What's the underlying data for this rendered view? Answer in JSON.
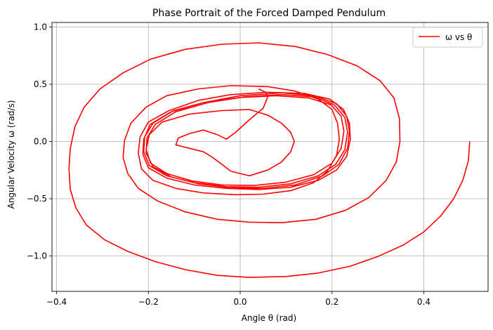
{
  "chart_data": {
    "type": "line",
    "title": "Phase Portrait of the Forced Damped Pendulum",
    "xlabel": "Angle θ (rad)",
    "ylabel": "Angular Velocity ω (rad/s)",
    "xlim": [
      -0.41,
      0.54
    ],
    "ylim": [
      -1.31,
      1.04
    ],
    "xticks": [
      -0.4,
      -0.2,
      0.0,
      0.2,
      0.4
    ],
    "xtick_labels": [
      "−0.4",
      "−0.2",
      "0.0",
      "0.2",
      "0.4"
    ],
    "yticks": [
      -1.0,
      -0.5,
      0.0,
      0.5,
      1.0
    ],
    "ytick_labels": [
      "−1.0",
      "−0.5",
      "0.0",
      "0.5",
      "1.0"
    ],
    "grid": true,
    "legend_position": "top-right",
    "series": [
      {
        "name": "ω vs θ",
        "color": "#ff0000",
        "points": [
          [
            0.5,
            0.0
          ],
          [
            0.497,
            -0.17
          ],
          [
            0.485,
            -0.34
          ],
          [
            0.465,
            -0.5
          ],
          [
            0.437,
            -0.65
          ],
          [
            0.4,
            -0.79
          ],
          [
            0.355,
            -0.905
          ],
          [
            0.3,
            -1.005
          ],
          [
            0.24,
            -1.09
          ],
          [
            0.17,
            -1.15
          ],
          [
            0.1,
            -1.18
          ],
          [
            0.02,
            -1.188
          ],
          [
            -0.05,
            -1.17
          ],
          [
            -0.12,
            -1.12
          ],
          [
            -0.185,
            -1.05
          ],
          [
            -0.245,
            -0.96
          ],
          [
            -0.295,
            -0.86
          ],
          [
            -0.335,
            -0.73
          ],
          [
            -0.358,
            -0.58
          ],
          [
            -0.37,
            -0.42
          ],
          [
            -0.373,
            -0.24
          ],
          [
            -0.37,
            -0.06
          ],
          [
            -0.36,
            0.13
          ],
          [
            -0.34,
            0.3
          ],
          [
            -0.305,
            0.46
          ],
          [
            -0.255,
            0.6
          ],
          [
            -0.195,
            0.72
          ],
          [
            -0.12,
            0.805
          ],
          [
            -0.04,
            0.85
          ],
          [
            0.04,
            0.862
          ],
          [
            0.12,
            0.83
          ],
          [
            0.19,
            0.76
          ],
          [
            0.255,
            0.66
          ],
          [
            0.305,
            0.53
          ],
          [
            0.335,
            0.38
          ],
          [
            0.347,
            0.2
          ],
          [
            0.348,
            0.0
          ],
          [
            0.34,
            -0.18
          ],
          [
            0.318,
            -0.34
          ],
          [
            0.28,
            -0.49
          ],
          [
            0.23,
            -0.6
          ],
          [
            0.165,
            -0.68
          ],
          [
            0.09,
            -0.71
          ],
          [
            0.02,
            -0.705
          ],
          [
            -0.05,
            -0.68
          ],
          [
            -0.12,
            -0.615
          ],
          [
            -0.18,
            -0.52
          ],
          [
            -0.222,
            -0.41
          ],
          [
            -0.245,
            -0.28
          ],
          [
            -0.255,
            -0.14
          ],
          [
            -0.252,
            0.01
          ],
          [
            -0.238,
            0.16
          ],
          [
            -0.205,
            0.3
          ],
          [
            -0.16,
            0.4
          ],
          [
            -0.09,
            0.46
          ],
          [
            -0.02,
            0.488
          ],
          [
            0.06,
            0.48
          ],
          [
            0.12,
            0.44
          ],
          [
            0.17,
            0.37
          ],
          [
            0.2,
            0.28
          ],
          [
            0.212,
            0.16
          ],
          [
            0.216,
            0.02
          ],
          [
            0.21,
            -0.12
          ],
          [
            0.19,
            -0.26
          ],
          [
            0.16,
            -0.36
          ],
          [
            0.11,
            -0.43
          ],
          [
            0.05,
            -0.46
          ],
          [
            -0.01,
            -0.465
          ],
          [
            -0.08,
            -0.45
          ],
          [
            -0.14,
            -0.41
          ],
          [
            -0.19,
            -0.34
          ],
          [
            -0.215,
            -0.24
          ],
          [
            -0.222,
            -0.1
          ],
          [
            -0.218,
            0.04
          ],
          [
            -0.2,
            0.17
          ],
          [
            -0.155,
            0.27
          ],
          [
            -0.09,
            0.36
          ],
          [
            -0.02,
            0.41
          ],
          [
            0.06,
            0.43
          ],
          [
            0.14,
            0.42
          ],
          [
            0.195,
            0.37
          ],
          [
            0.225,
            0.28
          ],
          [
            0.238,
            0.16
          ],
          [
            0.24,
            0.02
          ],
          [
            0.232,
            -0.13
          ],
          [
            0.21,
            -0.25
          ],
          [
            0.17,
            -0.34
          ],
          [
            0.11,
            -0.4
          ],
          [
            0.04,
            -0.42
          ],
          [
            -0.03,
            -0.41
          ],
          [
            -0.1,
            -0.38
          ],
          [
            -0.16,
            -0.32
          ],
          [
            -0.2,
            -0.23
          ],
          [
            -0.212,
            -0.11
          ],
          [
            -0.21,
            0.02
          ],
          [
            -0.196,
            0.15
          ],
          [
            -0.15,
            0.26
          ],
          [
            -0.08,
            0.34
          ],
          [
            0.0,
            0.4
          ],
          [
            0.09,
            0.425
          ],
          [
            0.16,
            0.4
          ],
          [
            0.21,
            0.33
          ],
          [
            0.232,
            0.22
          ],
          [
            0.238,
            0.09
          ],
          [
            0.234,
            -0.06
          ],
          [
            0.215,
            -0.2
          ],
          [
            0.18,
            -0.3
          ],
          [
            0.12,
            -0.38
          ],
          [
            0.05,
            -0.41
          ],
          [
            -0.02,
            -0.405
          ],
          [
            -0.09,
            -0.37
          ],
          [
            -0.15,
            -0.31
          ],
          [
            -0.19,
            -0.22
          ],
          [
            -0.205,
            -0.1
          ],
          [
            -0.203,
            0.03
          ],
          [
            -0.185,
            0.15
          ],
          [
            -0.14,
            0.26
          ],
          [
            -0.07,
            0.34
          ],
          [
            0.01,
            0.39
          ],
          [
            0.09,
            0.41
          ],
          [
            0.16,
            0.39
          ],
          [
            0.205,
            0.32
          ],
          [
            0.228,
            0.21
          ],
          [
            0.234,
            0.08
          ],
          [
            0.228,
            -0.07
          ],
          [
            0.208,
            -0.2
          ],
          [
            0.17,
            -0.3
          ],
          [
            0.11,
            -0.37
          ],
          [
            0.04,
            -0.4
          ],
          [
            -0.03,
            -0.395
          ],
          [
            -0.1,
            -0.36
          ],
          [
            -0.16,
            -0.3
          ],
          [
            -0.198,
            -0.21
          ],
          [
            -0.21,
            -0.09
          ],
          [
            -0.208,
            0.04
          ],
          [
            -0.19,
            0.16
          ],
          [
            -0.145,
            0.27
          ],
          [
            -0.08,
            0.34
          ],
          [
            0.0,
            0.385
          ],
          [
            0.08,
            0.4
          ],
          [
            0.15,
            0.38
          ],
          [
            0.198,
            0.32
          ],
          [
            0.22,
            0.22
          ],
          [
            0.226,
            0.09
          ],
          [
            0.22,
            -0.06
          ],
          [
            0.2,
            -0.19
          ],
          [
            0.16,
            -0.29
          ],
          [
            0.1,
            -0.355
          ],
          [
            0.03,
            -0.385
          ],
          [
            -0.04,
            -0.38
          ],
          [
            -0.105,
            -0.345
          ],
          [
            -0.16,
            -0.28
          ],
          [
            -0.195,
            -0.19
          ],
          [
            -0.205,
            -0.07
          ],
          [
            -0.198,
            0.06
          ],
          [
            -0.17,
            0.17
          ],
          [
            -0.11,
            0.24
          ],
          [
            -0.04,
            0.27
          ],
          [
            0.02,
            0.28
          ],
          [
            0.06,
            0.23
          ],
          [
            0.09,
            0.16
          ],
          [
            0.11,
            0.08
          ],
          [
            0.118,
            0.0
          ],
          [
            0.11,
            -0.09
          ],
          [
            0.09,
            -0.18
          ],
          [
            0.06,
            -0.25
          ],
          [
            0.02,
            -0.3
          ],
          [
            -0.02,
            -0.26
          ],
          [
            -0.04,
            -0.2
          ],
          [
            -0.06,
            -0.14
          ],
          [
            -0.08,
            -0.09
          ],
          [
            -0.11,
            -0.06
          ],
          [
            -0.14,
            -0.03
          ],
          [
            -0.135,
            0.03
          ],
          [
            -0.11,
            0.07
          ],
          [
            -0.08,
            0.1
          ],
          [
            -0.05,
            0.06
          ],
          [
            -0.03,
            0.02
          ],
          [
            -0.01,
            0.08
          ],
          [
            0.02,
            0.19
          ],
          [
            0.05,
            0.29
          ],
          [
            0.06,
            0.39
          ],
          [
            0.055,
            0.43
          ],
          [
            0.04,
            0.46
          ]
        ]
      }
    ]
  }
}
